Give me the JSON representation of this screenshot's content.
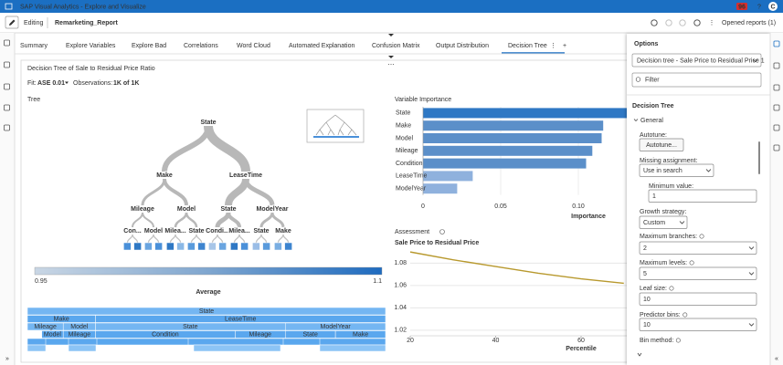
{
  "app_bar": {
    "title": "SAP Visual Analytics - Explore and Visualize",
    "notifications": "96",
    "help": "?",
    "user": "C"
  },
  "toolbar": {
    "mode": "Editing",
    "report": "Remarketing_Report",
    "opened_reports": "Opened reports (1)"
  },
  "tabs": {
    "items": [
      "Summary",
      "Explore Variables",
      "Explore Bad",
      "Correlations",
      "Word Cloud",
      "Automated Explanation",
      "Confusion Matrix",
      "Output Distribution",
      "Decision Tree"
    ],
    "active": 8,
    "add": "+"
  },
  "panel": {
    "title": "Decision Tree of Sale to Residual Price Ratio",
    "fit_label": "Fit:",
    "fit_value": "ASE 0.01",
    "observations_label": "Observations:",
    "observations_value": "1K of 1K"
  },
  "tree": {
    "heading": "Tree",
    "nodes": [
      "State",
      "Make",
      "LeaseTime",
      "Mileage",
      "Model",
      "State",
      "ModelYear",
      "Con...",
      "Model",
      "Milea...",
      "State",
      "Condi...",
      "Milea...",
      "State",
      "Make"
    ],
    "legend": {
      "title": "Average",
      "min": 0.95,
      "max": 1.1
    }
  },
  "icicle": {
    "rows": [
      [
        "State"
      ],
      [
        "Make",
        "LeaseTime"
      ],
      [
        "Mileage",
        "Model",
        "State",
        "ModelYear"
      ],
      [
        "Model",
        "Mileage",
        "Condition",
        "Mileage",
        "State",
        "Make"
      ]
    ]
  },
  "chart_data": [
    {
      "type": "bar",
      "orientation": "horizontal",
      "title": "Variable Importance",
      "categories": [
        "State",
        "Make",
        "Model",
        "Mileage",
        "Condition",
        "LeaseTime",
        "ModelYear"
      ],
      "values": [
        0.14,
        0.116,
        0.115,
        0.109,
        0.105,
        0.032,
        0.022
      ],
      "colors": [
        "#2f78c4",
        "#5b8fc9",
        "#5b8fc9",
        "#5b8fc9",
        "#5b8fc9",
        "#8fb1dd",
        "#8fb1dd"
      ],
      "xlim": [
        0,
        0.14
      ],
      "xticks": [
        0,
        0.05,
        {
          "value": 0.1,
          "label": "0.10"
        }
      ],
      "x_label": "Importance"
    },
    {
      "type": "line",
      "title": "Assessment",
      "subtitle": "Sale Price to Residual Price",
      "x": [
        20,
        30,
        40,
        50,
        60,
        70
      ],
      "values": [
        1.09,
        1.083,
        1.077,
        1.071,
        1.066,
        1.062
      ],
      "color": "#b8992e",
      "xlim": [
        20,
        80
      ],
      "xticks": [
        20,
        40,
        60
      ],
      "ylim": [
        1.015,
        1.095
      ],
      "yticks": [
        1.02,
        1.04,
        1.06,
        1.08
      ],
      "x_label": "Percentile",
      "grid": true
    }
  ],
  "options": {
    "title": "Options",
    "model": "Decision tree - Sale Price to Residual Price 1",
    "filter_placeholder": "Filter",
    "section": "Decision Tree",
    "group": "General",
    "fields": [
      {
        "label": "Autotune:",
        "value": "Autotune..."
      },
      {
        "label": "Missing assignment:",
        "value": "Use in search"
      },
      {
        "label": "Minimum value:",
        "value": "1"
      },
      {
        "label": "Growth strategy:",
        "value": "Custom"
      },
      {
        "label": "Maximum branches:",
        "value": "2"
      },
      {
        "label": "Maximum levels:",
        "value": "5"
      },
      {
        "label": "Leaf size:",
        "value": "10"
      },
      {
        "label": "Predictor bins:",
        "value": "10"
      },
      {
        "label": "Bin method:"
      }
    ]
  }
}
